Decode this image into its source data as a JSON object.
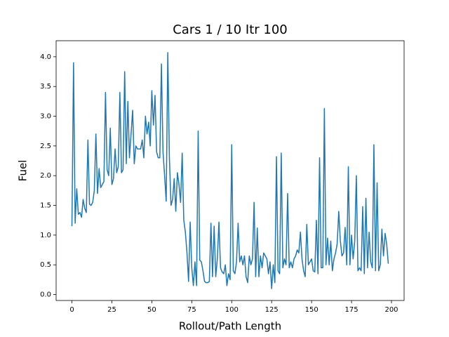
{
  "chart_data": {
    "type": "line",
    "title": "Cars 1 / 10 Itr 100",
    "x_label": "Rollout/Path Length",
    "y_label": "Fuel",
    "x": [
      0,
      1,
      2,
      3,
      4,
      5,
      6,
      7,
      8,
      9,
      10,
      11,
      12,
      13,
      14,
      15,
      16,
      17,
      18,
      19,
      20,
      21,
      22,
      23,
      24,
      25,
      26,
      27,
      28,
      29,
      30,
      31,
      32,
      33,
      34,
      35,
      36,
      37,
      38,
      39,
      40,
      41,
      42,
      43,
      44,
      45,
      46,
      47,
      48,
      49,
      50,
      51,
      52,
      53,
      54,
      55,
      56,
      57,
      58,
      59,
      60,
      61,
      62,
      63,
      64,
      65,
      66,
      67,
      68,
      69,
      70,
      71,
      72,
      73,
      74,
      75,
      76,
      77,
      78,
      79,
      80,
      81,
      82,
      83,
      84,
      85,
      86,
      87,
      88,
      89,
      90,
      91,
      92,
      93,
      94,
      95,
      96,
      97,
      98,
      99,
      100,
      101,
      102,
      103,
      104,
      105,
      106,
      107,
      108,
      109,
      110,
      111,
      112,
      113,
      114,
      115,
      116,
      117,
      118,
      119,
      120,
      121,
      122,
      123,
      124,
      125,
      126,
      127,
      128,
      129,
      130,
      131,
      132,
      133,
      134,
      135,
      136,
      137,
      138,
      139,
      140,
      141,
      142,
      143,
      144,
      145,
      146,
      147,
      148,
      149,
      150,
      151,
      152,
      153,
      154,
      155,
      156,
      157,
      158,
      159,
      160,
      161,
      162,
      163,
      164,
      165,
      166,
      167,
      168,
      169,
      170,
      171,
      172,
      173,
      174,
      175,
      176,
      177,
      178,
      179,
      180,
      181,
      182,
      183,
      184,
      185,
      186,
      187,
      188,
      189,
      190,
      191,
      192,
      193,
      194,
      195,
      196,
      197,
      198
    ],
    "series": [
      {
        "name": "Fuel",
        "color": "#1f77b4",
        "values": [
          1.15,
          3.9,
          1.2,
          1.78,
          1.35,
          1.38,
          1.3,
          1.6,
          1.45,
          1.38,
          2.6,
          1.52,
          1.5,
          1.55,
          1.75,
          2.7,
          1.7,
          2.12,
          1.8,
          1.85,
          1.9,
          3.4,
          2.1,
          2.0,
          2.8,
          1.85,
          1.95,
          2.45,
          2.05,
          2.15,
          3.4,
          2.05,
          2.1,
          3.75,
          2.2,
          3.25,
          2.3,
          2.7,
          3.1,
          2.2,
          2.5,
          2.45,
          2.45,
          2.45,
          2.6,
          2.3,
          3.0,
          2.7,
          2.9,
          2.5,
          3.43,
          2.85,
          3.35,
          2.4,
          2.3,
          2.3,
          3.88,
          2.4,
          2.0,
          1.57,
          4.07,
          2.3,
          1.5,
          1.6,
          1.95,
          1.4,
          2.05,
          1.85,
          1.55,
          2.38,
          1.25,
          1.05,
          0.7,
          0.22,
          1.22,
          0.45,
          0.15,
          0.55,
          0.15,
          2.75,
          0.58,
          0.55,
          0.4,
          0.22,
          0.2,
          0.2,
          0.22,
          1.2,
          0.3,
          1.15,
          0.3,
          0.6,
          1.22,
          0.45,
          0.38,
          0.35,
          0.5,
          0.15,
          0.35,
          0.25,
          2.52,
          0.4,
          0.35,
          0.55,
          1.2,
          0.55,
          0.65,
          0.5,
          0.65,
          0.3,
          0.2,
          0.65,
          0.5,
          0.6,
          1.55,
          0.3,
          1.12,
          0.3,
          0.65,
          0.45,
          0.7,
          0.65,
          0.6,
          0.35,
          0.55,
          0.1,
          0.5,
          0.2,
          2.32,
          0.4,
          0.35,
          2.38,
          0.45,
          0.6,
          0.5,
          1.7,
          0.45,
          0.55,
          0.45,
          0.6,
          0.65,
          0.75,
          0.7,
          1.05,
          0.6,
          0.4,
          0.3,
          1.18,
          0.5,
          0.55,
          0.6,
          0.4,
          0.38,
          1.25,
          0.35,
          2.3,
          0.45,
          0.45,
          3.13,
          0.5,
          0.95,
          0.5,
          0.9,
          0.4,
          0.6,
          0.7,
          0.85,
          1.4,
          0.9,
          0.65,
          0.7,
          1.13,
          0.5,
          2.15,
          0.5,
          1.0,
          0.6,
          0.9,
          2.0,
          0.4,
          0.45,
          0.4,
          1.48,
          0.35,
          1.62,
          0.45,
          1.05,
          0.55,
          0.45,
          2.52,
          0.4,
          1.88,
          0.4,
          0.5,
          1.1,
          0.65,
          1.03,
          0.85,
          0.52
        ]
      }
    ],
    "xlim": [
      -9.9,
      207.9
    ],
    "ylim": [
      -0.1,
      4.27
    ],
    "xticks": [
      0,
      25,
      50,
      75,
      100,
      125,
      150,
      175,
      200
    ],
    "yticks": [
      {
        "value": 0,
        "label": "0.0"
      },
      {
        "value": 0.5,
        "label": "0.5"
      },
      {
        "value": 1,
        "label": "1.0"
      },
      {
        "value": 1.5,
        "label": "1.5"
      },
      {
        "value": 2,
        "label": "2.0"
      },
      {
        "value": 2.5,
        "label": "2.5"
      },
      {
        "value": 3,
        "label": "3.0"
      },
      {
        "value": 3.5,
        "label": "3.5"
      },
      {
        "value": 4,
        "label": "4.0"
      }
    ]
  }
}
